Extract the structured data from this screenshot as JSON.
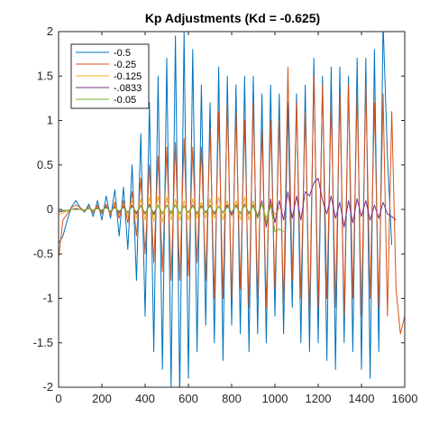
{
  "chart_data": {
    "type": "line",
    "title": "Kp Adjustments (Kd = -0.625)",
    "xlabel": "",
    "ylabel": "",
    "xlim": [
      0,
      1600
    ],
    "ylim": [
      -2,
      2
    ],
    "xticks": [
      "0",
      "200",
      "400",
      "600",
      "800",
      "1000",
      "1200",
      "1400",
      "1600"
    ],
    "yticks": [
      "2",
      "1.5",
      "1",
      "0.5",
      "0",
      "-0.5",
      "-1",
      "-1.5",
      "-2"
    ],
    "grid": false,
    "legend_position": "top-left",
    "series": [
      {
        "name": "-0.5",
        "color": "#0072BD",
        "x": [
          0,
          20,
          40,
          60,
          80,
          100,
          120,
          140,
          160,
          180,
          200,
          220,
          240,
          260,
          280,
          300,
          320,
          340,
          360,
          380,
          400,
          420,
          440,
          460,
          480,
          500,
          520,
          540,
          560,
          580,
          600,
          620,
          640,
          660,
          680,
          700,
          720,
          740,
          760,
          780,
          800,
          820,
          840,
          860,
          880,
          900,
          920,
          940,
          960,
          980,
          1000,
          1020,
          1040,
          1060,
          1080,
          1100,
          1120,
          1140,
          1160,
          1180,
          1200,
          1220,
          1240,
          1260,
          1280,
          1300,
          1320,
          1340,
          1360,
          1380,
          1400,
          1420,
          1440,
          1460,
          1480,
          1500,
          1520,
          1540
        ],
        "values": [
          -0.38,
          -0.3,
          -0.12,
          0.03,
          0.1,
          0.02,
          -0.03,
          0.06,
          -0.08,
          0.1,
          -0.12,
          0.15,
          -0.1,
          0.22,
          -0.3,
          0.25,
          -0.45,
          0.5,
          -0.8,
          0.85,
          -1.2,
          1.2,
          -1.6,
          1.5,
          -1.8,
          1.7,
          -2.0,
          1.95,
          -2.1,
          2.0,
          -1.9,
          1.8,
          -1.6,
          1.4,
          -1.3,
          1.2,
          -1.5,
          1.6,
          -1.7,
          1.5,
          -1.3,
          1.4,
          -1.4,
          1.5,
          -1.6,
          1.5,
          -1.4,
          1.3,
          -1.5,
          1.4,
          -1.2,
          1.3,
          -1.4,
          1.2,
          -1.1,
          1.3,
          -1.5,
          1.4,
          -1.6,
          1.7,
          -1.5,
          1.5,
          -1.7,
          1.6,
          -1.8,
          1.6,
          -1.5,
          1.5,
          -1.6,
          1.7,
          -1.8,
          1.7,
          -1.9,
          1.8,
          -1.6,
          2.1,
          0.6,
          -0.4
        ]
      },
      {
        "name": "-0.25",
        "color": "#D95319",
        "x": [
          0,
          20,
          40,
          60,
          80,
          100,
          120,
          140,
          160,
          180,
          200,
          220,
          240,
          260,
          280,
          300,
          320,
          340,
          360,
          380,
          400,
          420,
          440,
          460,
          480,
          500,
          520,
          540,
          560,
          580,
          600,
          620,
          640,
          660,
          680,
          700,
          720,
          740,
          760,
          780,
          800,
          820,
          840,
          860,
          880,
          900,
          920,
          940,
          960,
          980,
          1000,
          1020,
          1040,
          1060,
          1080,
          1100,
          1120,
          1140,
          1160,
          1180,
          1200,
          1220,
          1240,
          1260,
          1280,
          1300,
          1320,
          1340,
          1360,
          1380,
          1400,
          1420,
          1440,
          1460,
          1480,
          1500,
          1520,
          1540,
          1560,
          1580,
          1600
        ],
        "values": [
          -0.55,
          -0.12,
          -0.05,
          0.02,
          0.05,
          0.02,
          -0.02,
          0.03,
          -0.04,
          0.05,
          -0.05,
          0.06,
          -0.06,
          0.08,
          -0.1,
          0.1,
          -0.15,
          0.2,
          -0.3,
          0.35,
          -0.5,
          0.5,
          -0.6,
          0.6,
          -0.7,
          0.7,
          -0.8,
          0.75,
          -0.8,
          0.8,
          -0.75,
          0.7,
          -0.6,
          0.7,
          -0.8,
          0.9,
          -1.0,
          1.1,
          -1.0,
          1.2,
          -1.0,
          1.1,
          -0.9,
          1.0,
          -1.1,
          1.2,
          -1.0,
          0.9,
          -1.1,
          1.0,
          -0.9,
          1.0,
          -1.1,
          1.6,
          -0.8,
          1.2,
          -1.0,
          1.1,
          -1.2,
          1.5,
          -1.1,
          1.4,
          -1.0,
          1.2,
          -1.1,
          1.3,
          -1.2,
          1.4,
          -1.0,
          1.3,
          -1.2,
          1.4,
          -1.0,
          1.2,
          -1.1,
          1.3,
          -1.2,
          1.1,
          -0.9,
          -1.4,
          -1.2
        ]
      },
      {
        "name": "-0.125",
        "color": "#EDB120",
        "x": [
          0,
          20,
          40,
          60,
          80,
          100,
          120,
          140,
          160,
          180,
          200,
          220,
          240,
          260,
          280,
          300,
          320,
          340,
          360,
          380,
          400,
          420,
          440,
          460,
          480,
          500,
          520,
          540,
          560,
          580,
          600,
          620,
          640,
          660,
          680,
          700,
          720,
          740,
          760,
          780,
          800,
          820,
          840,
          860,
          880,
          900,
          920,
          940,
          960,
          980,
          1000,
          1020,
          1040
        ],
        "values": [
          -0.06,
          -0.04,
          -0.02,
          0.0,
          0.01,
          0.0,
          -0.01,
          0.02,
          -0.02,
          0.03,
          -0.03,
          0.04,
          -0.04,
          0.05,
          -0.06,
          0.06,
          -0.08,
          0.1,
          -0.1,
          0.12,
          -0.12,
          0.14,
          -0.14,
          0.15,
          -0.15,
          0.14,
          -0.12,
          0.12,
          -0.13,
          0.1,
          -0.12,
          0.12,
          -0.1,
          0.08,
          -0.1,
          0.12,
          -0.1,
          0.14,
          -0.12,
          0.1,
          -0.08,
          0.1,
          -0.12,
          0.14,
          -0.12,
          0.1,
          -0.08,
          0.06,
          -0.1,
          0.08,
          -0.06,
          0.02,
          -0.01
        ]
      },
      {
        "name": "-.0833",
        "color": "#7E2F8E",
        "x": [
          0,
          20,
          40,
          60,
          80,
          100,
          120,
          140,
          160,
          180,
          200,
          220,
          240,
          260,
          280,
          300,
          320,
          340,
          360,
          380,
          400,
          420,
          440,
          460,
          480,
          500,
          520,
          540,
          560,
          580,
          600,
          620,
          640,
          660,
          680,
          700,
          720,
          740,
          760,
          780,
          800,
          820,
          840,
          860,
          880,
          900,
          920,
          940,
          960,
          980,
          1000,
          1020,
          1040,
          1060,
          1080,
          1100,
          1120,
          1140,
          1160,
          1180,
          1200,
          1220,
          1240,
          1260,
          1280,
          1300,
          1320,
          1340,
          1360,
          1380,
          1400,
          1420,
          1440,
          1460,
          1480,
          1500,
          1520,
          1540,
          1560
        ],
        "values": [
          -0.03,
          -0.02,
          -0.01,
          0.0,
          0.01,
          0.0,
          -0.01,
          0.01,
          -0.01,
          0.02,
          -0.02,
          0.03,
          -0.03,
          0.03,
          -0.04,
          0.04,
          -0.04,
          0.05,
          -0.05,
          0.05,
          -0.05,
          0.06,
          -0.06,
          0.05,
          -0.05,
          0.05,
          -0.04,
          0.05,
          -0.05,
          0.04,
          -0.04,
          0.05,
          -0.05,
          0.04,
          -0.04,
          0.05,
          -0.05,
          0.04,
          -0.04,
          0.05,
          -0.06,
          0.05,
          -0.05,
          0.06,
          -0.05,
          0.05,
          -0.08,
          0.1,
          -0.2,
          0.12,
          -0.15,
          0.1,
          -0.12,
          0.2,
          -0.1,
          0.15,
          -0.12,
          0.2,
          0.15,
          0.3,
          0.35,
          0.1,
          -0.05,
          0.15,
          -0.1,
          0.08,
          -0.2,
          0.1,
          -0.15,
          0.12,
          -0.08,
          0.1,
          -0.12,
          0.05,
          -0.1,
          0.08,
          -0.05,
          -0.08,
          -0.12
        ]
      },
      {
        "name": "-0.05",
        "color": "#77AC30",
        "x": [
          0,
          20,
          40,
          60,
          80,
          100,
          120,
          140,
          160,
          180,
          200,
          220,
          240,
          260,
          280,
          300,
          320,
          340,
          360,
          380,
          400,
          420,
          440,
          460,
          480,
          500,
          520,
          540,
          560,
          580,
          600,
          620,
          640,
          660,
          680,
          700,
          720,
          740,
          760,
          780,
          800,
          820,
          840,
          860,
          880,
          900,
          920,
          940,
          960,
          980,
          1000,
          1020,
          1040
        ],
        "values": [
          -0.02,
          -0.01,
          -0.01,
          0.0,
          0.0,
          0.0,
          -0.01,
          0.01,
          -0.01,
          0.01,
          -0.01,
          0.02,
          -0.02,
          0.02,
          -0.02,
          0.02,
          -0.03,
          0.03,
          -0.03,
          0.04,
          -0.04,
          0.04,
          -0.04,
          0.05,
          -0.05,
          0.05,
          -0.05,
          0.05,
          -0.05,
          0.04,
          -0.04,
          0.04,
          -0.04,
          0.03,
          -0.03,
          0.04,
          -0.04,
          0.04,
          -0.04,
          0.03,
          -0.03,
          0.04,
          -0.05,
          0.05,
          -0.04,
          0.04,
          -0.1,
          0.08,
          -0.15,
          0.05,
          -0.25,
          -0.22,
          -0.25
        ]
      }
    ]
  }
}
